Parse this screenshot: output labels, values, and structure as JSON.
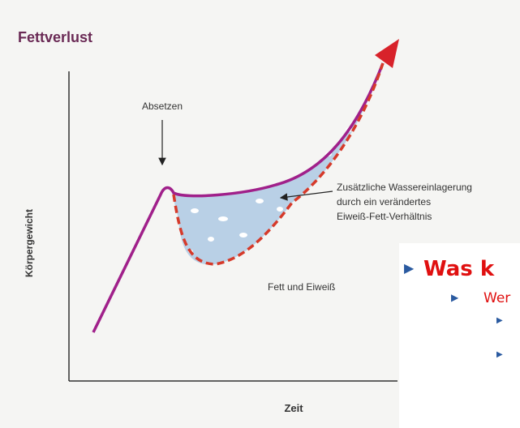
{
  "figure": {
    "title": "Fettverlust",
    "y_axis_label": "Körpergewicht",
    "x_axis_label": "Zeit",
    "annotations": {
      "start": "Absetzen",
      "water": [
        "Zusätzliche Wassereinlagerung",
        "durch ein verändertes",
        "Eiweiß-Fett-Verhältnis"
      ],
      "tissue": "Fett und Eiweiß"
    }
  },
  "slide": {
    "heading": "Was k",
    "bullet": "Wer"
  }
}
